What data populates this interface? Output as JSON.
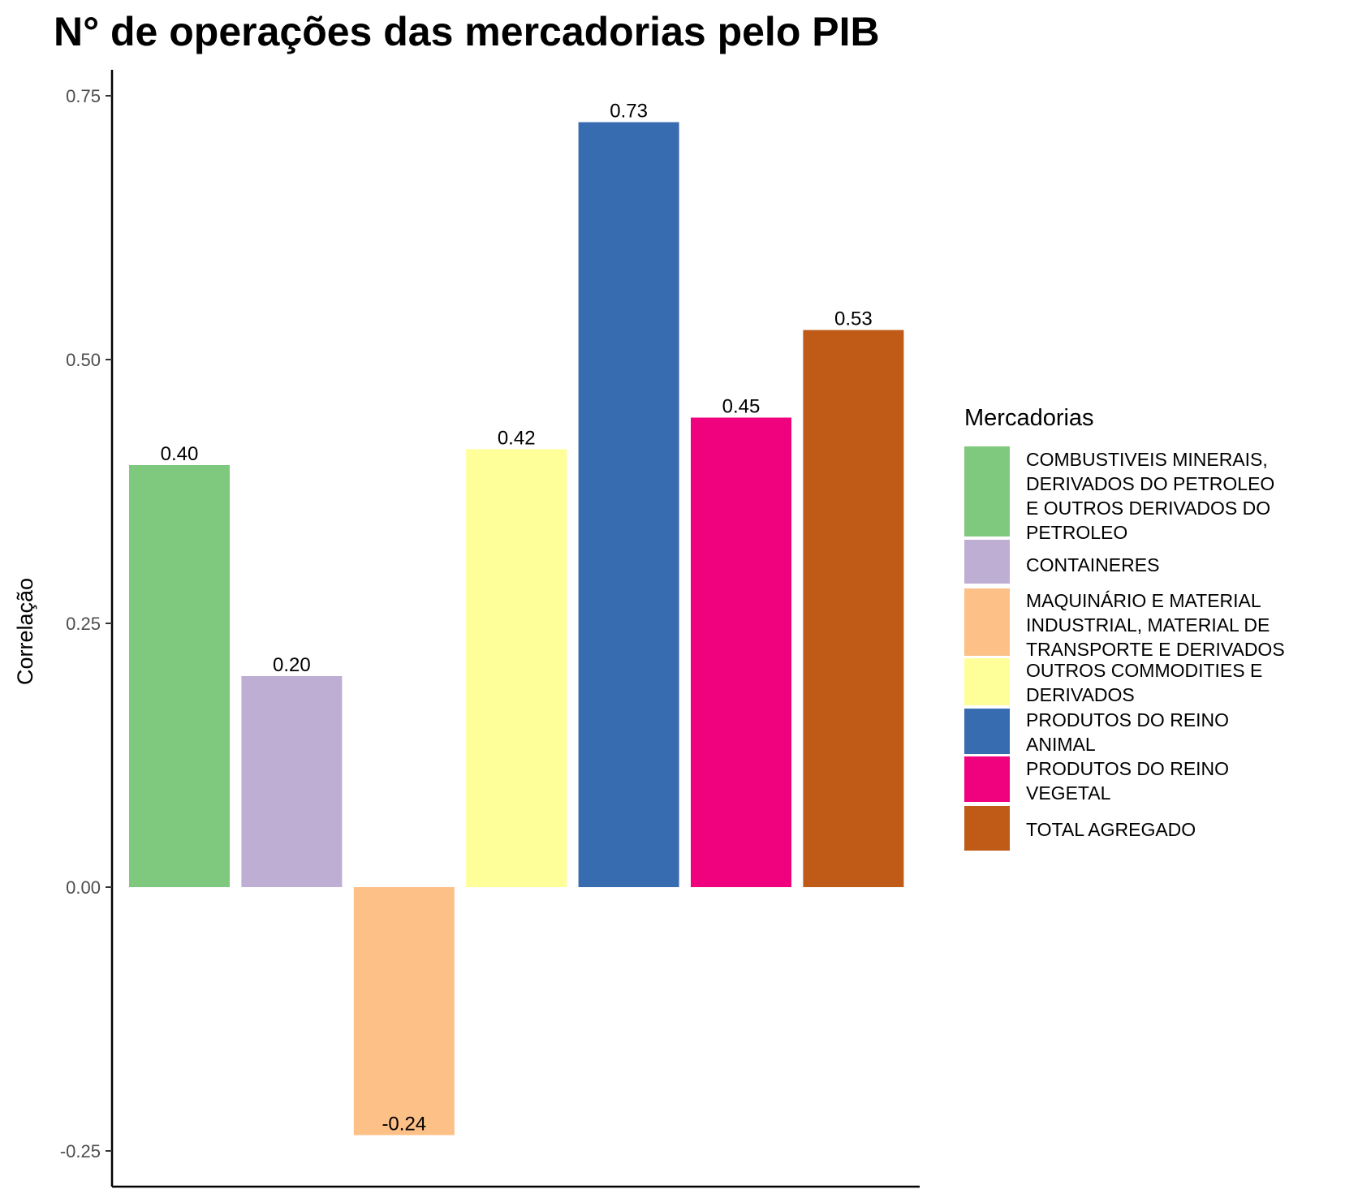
{
  "chart_data": {
    "type": "bar",
    "title": "N° de operações das mercadorias pelo PIB",
    "xlabel": "",
    "ylabel": "Correlação",
    "ylim": [
      -0.25,
      0.75
    ],
    "yticks": [
      -0.25,
      0.0,
      0.25,
      0.5,
      0.75
    ],
    "ytick_labels": [
      "-0.25",
      "0.00",
      "0.25",
      "0.50",
      "0.75"
    ],
    "grid": false,
    "legend": {
      "title": "Mercadorias",
      "placement": "right"
    },
    "categories": [
      "COMBUSTIVEIS MINERAIS, DERIVADOS DO PETROLEO E OUTROS DERIVADOS DO PETROLEO",
      "CONTAINERES",
      "MAQUINÁRIO E MATERIAL INDUSTRIAL, MATERIAL DE TRANSPORTE E DERIVADOS",
      "OUTROS COMMODITIES E DERIVADOS",
      "PRODUTOS DO REINO ANIMAL",
      "PRODUTOS DO REINO VEGETAL",
      "TOTAL AGREGADO"
    ],
    "legend_lines": [
      [
        "COMBUSTIVEIS MINERAIS,",
        "DERIVADOS DO PETROLEO",
        "E OUTROS DERIVADOS DO",
        "PETROLEO"
      ],
      [
        "CONTAINERES"
      ],
      [
        "MAQUINÁRIO E MATERIAL",
        "INDUSTRIAL, MATERIAL DE",
        "TRANSPORTE E DERIVADOS"
      ],
      [
        "OUTROS COMMODITIES E",
        "DERIVADOS"
      ],
      [
        "PRODUTOS DO REINO",
        "ANIMAL"
      ],
      [
        "PRODUTOS DO REINO",
        "VEGETAL"
      ],
      [
        "TOTAL AGREGADO"
      ]
    ],
    "values": [
      0.4,
      0.2,
      -0.235,
      0.415,
      0.725,
      0.445,
      0.528
    ],
    "value_labels": [
      "0.40",
      "0.20",
      "-0.24",
      "0.42",
      "0.73",
      "0.45",
      "0.53"
    ],
    "colors": [
      "#7fc97f",
      "#beaed4",
      "#fdc086",
      "#ffff99",
      "#386cb0",
      "#f0027f",
      "#bf5b17"
    ]
  }
}
